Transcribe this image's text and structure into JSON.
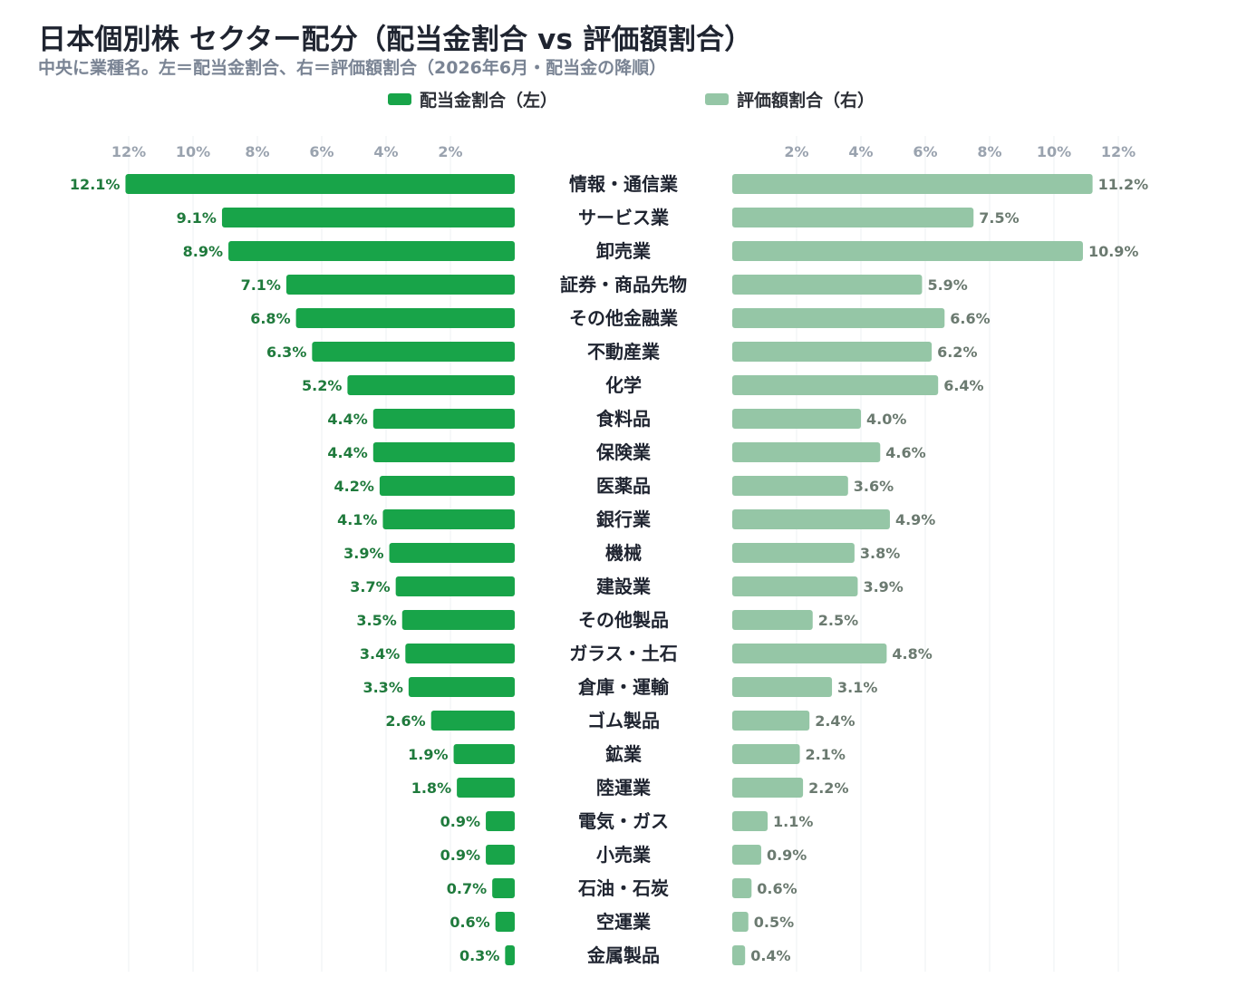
{
  "title": "日本個別株 セクター配分（配当金割合 vs 評価額割合）",
  "subtitle": "中央に業種名。左＝配当金割合、右＝評価額割合（2026年6月・配当金の降順）",
  "colors": {
    "dividend": "#18a449",
    "dividend_label": "#1f7a3c",
    "valuation": "#95c6a6",
    "valuation_label": "#6b7a70",
    "tick": "#9aa3af",
    "grid": "#eef0f3",
    "category": "#1f2430"
  },
  "legend": {
    "dividend": "配当金割合（左）",
    "valuation": "評価額割合（右）"
  },
  "chart_data": {
    "type": "bar",
    "orientation": "horizontal-butterfly",
    "categories": [
      "情報・通信業",
      "サービス業",
      "卸売業",
      "証券・商品先物",
      "その他金融業",
      "不動産業",
      "化学",
      "食料品",
      "保険業",
      "医薬品",
      "銀行業",
      "機械",
      "建設業",
      "その他製品",
      "ガラス・土石",
      "倉庫・運輸",
      "ゴム製品",
      "鉱業",
      "陸運業",
      "電気・ガス",
      "小売業",
      "石油・石炭",
      "空運業",
      "金属製品"
    ],
    "series": [
      {
        "name": "配当金割合（左）",
        "side": "left",
        "values": [
          12.1,
          9.1,
          8.9,
          7.1,
          6.8,
          6.3,
          5.2,
          4.4,
          4.4,
          4.2,
          4.1,
          3.9,
          3.7,
          3.5,
          3.4,
          3.3,
          2.6,
          1.9,
          1.8,
          0.9,
          0.9,
          0.7,
          0.6,
          0.3
        ]
      },
      {
        "name": "評価額割合（右）",
        "side": "right",
        "values": [
          11.2,
          7.5,
          10.9,
          5.9,
          6.6,
          6.2,
          6.4,
          4.0,
          4.6,
          3.6,
          4.9,
          3.8,
          3.9,
          2.5,
          4.8,
          3.1,
          2.4,
          2.1,
          2.2,
          1.1,
          0.9,
          0.6,
          0.5,
          0.4
        ]
      }
    ],
    "ticks": [
      2,
      4,
      6,
      8,
      10,
      12
    ],
    "tick_labels": [
      "2%",
      "4%",
      "6%",
      "8%",
      "10%",
      "12%"
    ],
    "value_suffix": "%",
    "xlim": [
      0,
      12
    ],
    "grid": true,
    "legend_position": "top-center"
  }
}
